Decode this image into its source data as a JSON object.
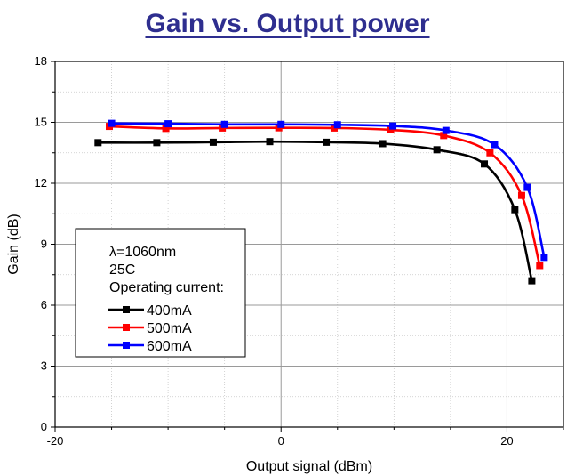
{
  "chart_data": {
    "type": "line",
    "title": "Gain vs. Output power",
    "xlabel": "Output signal (dBm)",
    "ylabel": "Gain (dB)",
    "xlim": [
      -20,
      25
    ],
    "ylim": [
      0,
      18
    ],
    "xticks": [
      -20,
      0,
      20
    ],
    "yticks": [
      0,
      3,
      6,
      9,
      12,
      15,
      18
    ],
    "grid": true,
    "legend": {
      "placement": "lower-left",
      "header": [
        "λ=1060nm",
        "25C",
        "Operating current:"
      ]
    },
    "series": [
      {
        "name": "400mA",
        "color": "#000000",
        "x": [
          -16.2,
          -11.0,
          -6.0,
          -1.0,
          4.0,
          9.0,
          13.8,
          18.0,
          20.7,
          22.2
        ],
        "y": [
          14.0,
          14.0,
          14.02,
          14.05,
          14.02,
          13.95,
          13.65,
          12.95,
          10.7,
          7.2
        ]
      },
      {
        "name": "500mA",
        "color": "#ff0000",
        "x": [
          -15.2,
          -10.2,
          -5.2,
          -0.2,
          4.7,
          9.7,
          14.4,
          18.5,
          21.3,
          22.9
        ],
        "y": [
          14.8,
          14.7,
          14.72,
          14.73,
          14.72,
          14.63,
          14.35,
          13.5,
          11.4,
          7.95
        ]
      },
      {
        "name": "600mA",
        "color": "#0000ff",
        "x": [
          -15.0,
          -10.0,
          -5.0,
          0.0,
          5.0,
          9.9,
          14.6,
          18.9,
          21.8,
          23.3
        ],
        "y": [
          14.95,
          14.93,
          14.9,
          14.9,
          14.88,
          14.82,
          14.6,
          13.9,
          11.8,
          8.35
        ]
      }
    ]
  }
}
